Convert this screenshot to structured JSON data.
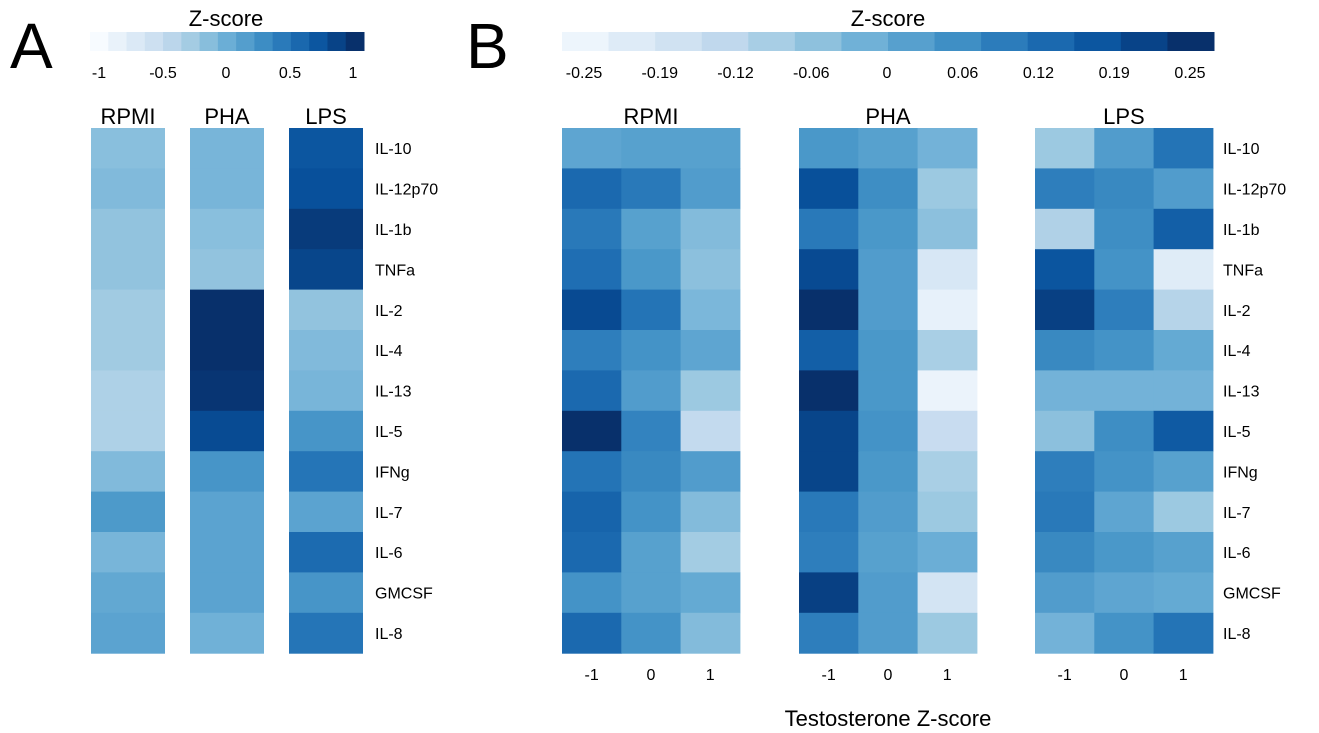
{
  "chart_data": [
    {
      "panel": "A",
      "type": "heatmap",
      "legend_title": "Z-score",
      "legend_ticks": [
        "-1",
        "-0.5",
        "0",
        "0.5",
        "1"
      ],
      "legend_range": [
        -1,
        1
      ],
      "columns": [
        "RPMI",
        "PHA",
        "LPS"
      ],
      "rows": [
        "IL-10",
        "IL-12p70",
        "IL-1b",
        "TNFa",
        "IL-2",
        "IL-4",
        "IL-13",
        "IL-5",
        "IFNg",
        "IL-7",
        "IL-6",
        "GMCSF",
        "IL-8"
      ],
      "values": [
        [
          -0.4,
          -0.3,
          0.65
        ],
        [
          -0.35,
          -0.3,
          0.7
        ],
        [
          -0.45,
          -0.4,
          0.9
        ],
        [
          -0.45,
          -0.45,
          0.8
        ],
        [
          -0.55,
          1.0,
          -0.45
        ],
        [
          -0.55,
          1.0,
          -0.35
        ],
        [
          -0.65,
          0.95,
          -0.3
        ],
        [
          -0.65,
          0.75,
          0.05
        ],
        [
          -0.35,
          0.05,
          0.35
        ],
        [
          0.0,
          -0.1,
          -0.1
        ],
        [
          -0.3,
          -0.1,
          0.45
        ],
        [
          -0.15,
          -0.1,
          0.05
        ],
        [
          -0.1,
          -0.25,
          0.35
        ]
      ]
    },
    {
      "panel": "B",
      "type": "heatmap",
      "legend_title": "Z-score",
      "legend_ticks": [
        "-0.25",
        "-0.19",
        "-0.12",
        "-0.06",
        "0",
        "0.06",
        "0.12",
        "0.19",
        "0.25"
      ],
      "legend_range": [
        -0.25,
        0.25
      ],
      "groups": [
        "RPMI",
        "PHA",
        "LPS"
      ],
      "subcolumns": [
        "-1",
        "0",
        "1"
      ],
      "xlabel": "Testosterone Z-score",
      "rows": [
        "IL-10",
        "IL-12p70",
        "IL-1b",
        "TNFa",
        "IL-2",
        "IL-4",
        "IL-13",
        "IL-5",
        "IFNg",
        "IL-7",
        "IL-6",
        "GMCSF",
        "IL-8"
      ],
      "values": [
        [
          0.02,
          0.03,
          0.03,
          0.05,
          0.03,
          -0.01,
          -0.06,
          0.04,
          0.12
        ],
        [
          0.14,
          0.11,
          0.04,
          0.19,
          0.07,
          -0.06,
          0.1,
          0.08,
          0.04
        ],
        [
          0.11,
          0.03,
          -0.03,
          0.11,
          0.05,
          -0.04,
          -0.09,
          0.07,
          0.16
        ],
        [
          0.13,
          0.05,
          -0.04,
          0.2,
          0.04,
          -0.17,
          0.18,
          0.06,
          -0.19
        ],
        [
          0.2,
          0.12,
          -0.02,
          0.25,
          0.04,
          -0.21,
          0.22,
          0.1,
          -0.1
        ],
        [
          0.1,
          0.06,
          0.02,
          0.16,
          0.05,
          -0.08,
          0.08,
          0.06,
          0.01
        ],
        [
          0.14,
          0.04,
          -0.06,
          0.25,
          0.05,
          -0.22,
          -0.01,
          -0.01,
          -0.01
        ],
        [
          0.25,
          0.09,
          -0.12,
          0.21,
          0.06,
          -0.13,
          -0.04,
          0.07,
          0.17
        ],
        [
          0.12,
          0.08,
          0.04,
          0.21,
          0.05,
          -0.08,
          0.1,
          0.06,
          0.03
        ],
        [
          0.15,
          0.06,
          -0.03,
          0.11,
          0.04,
          -0.06,
          0.11,
          0.02,
          -0.06
        ],
        [
          0.14,
          0.03,
          -0.07,
          0.1,
          0.03,
          0.0,
          0.08,
          0.05,
          0.03
        ],
        [
          0.06,
          0.03,
          0.01,
          0.22,
          0.04,
          -0.16,
          0.04,
          0.02,
          0.01
        ],
        [
          0.14,
          0.06,
          -0.03,
          0.1,
          0.04,
          -0.06,
          -0.01,
          0.06,
          0.12
        ]
      ]
    }
  ]
}
